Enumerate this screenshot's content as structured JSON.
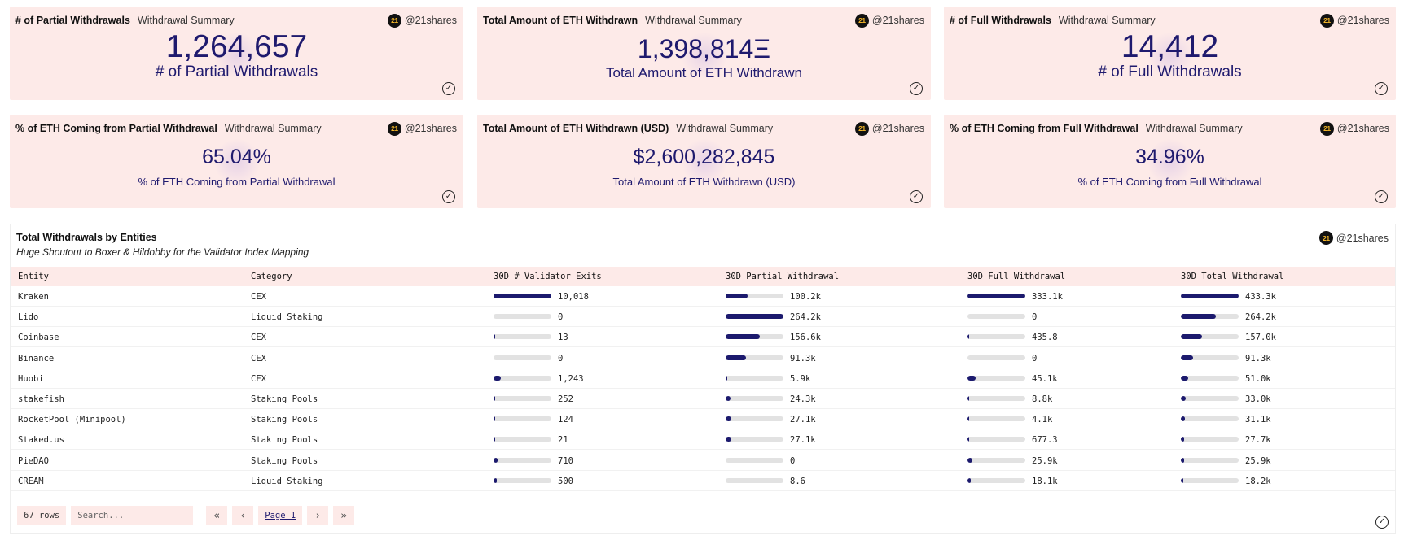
{
  "brand": {
    "logo": "21",
    "handle": "@21shares"
  },
  "cards": [
    {
      "title": "# of Partial Withdrawals",
      "subtitle": "Withdrawal Summary",
      "value": "1,264,657",
      "caption": "# of Partial Withdrawals"
    },
    {
      "title": "Total Amount of ETH Withdrawn",
      "subtitle": "Withdrawal Summary",
      "value": "1,398,814Ξ",
      "caption": "Total Amount of ETH Withdrawn"
    },
    {
      "title": "# of Full Withdrawals",
      "subtitle": "Withdrawal Summary",
      "value": "14,412",
      "caption": "# of Full Withdrawals"
    },
    {
      "title": "% of ETH Coming from Partial Withdrawal",
      "subtitle": "Withdrawal Summary",
      "value": "65.04%",
      "caption": "% of ETH Coming from Partial Withdrawal"
    },
    {
      "title": "Total Amount of ETH Withdrawn (USD)",
      "subtitle": "Withdrawal Summary",
      "value": "$2,600,282,845",
      "caption": "Total Amount of ETH Withdrawn (USD)"
    },
    {
      "title": "% of ETH Coming from Full Withdrawal",
      "subtitle": "Withdrawal Summary",
      "value": "34.96%",
      "caption": "% of ETH Coming from Full Withdrawal"
    }
  ],
  "table": {
    "title": "Total Withdrawals by Entities",
    "subtitle": "Huge Shoutout to Boxer & Hildobby for the Validator Index Mapping",
    "columns": [
      "Entity",
      "Category",
      "30D # Validator Exits",
      "30D Partial Withdrawal",
      "30D Full Withdrawal",
      "30D Total Withdrawal"
    ],
    "rows": [
      {
        "entity": "Kraken",
        "category": "CEX",
        "exits": "10,018",
        "exits_pct": 1.0,
        "partial": "100.2k",
        "partial_pct": 0.38,
        "full": "333.1k",
        "full_pct": 1.0,
        "total": "433.3k",
        "total_pct": 1.0
      },
      {
        "entity": "Lido",
        "category": "Liquid Staking",
        "exits": "0",
        "exits_pct": 0,
        "partial": "264.2k",
        "partial_pct": 1.0,
        "full": "0",
        "full_pct": 0,
        "total": "264.2k",
        "total_pct": 0.61
      },
      {
        "entity": "Coinbase",
        "category": "CEX",
        "exits": "13",
        "exits_pct": 0.01,
        "partial": "156.6k",
        "partial_pct": 0.59,
        "full": "435.8",
        "full_pct": 0.01,
        "total": "157.0k",
        "total_pct": 0.36
      },
      {
        "entity": "Binance",
        "category": "CEX",
        "exits": "0",
        "exits_pct": 0,
        "partial": "91.3k",
        "partial_pct": 0.35,
        "full": "0",
        "full_pct": 0,
        "total": "91.3k",
        "total_pct": 0.21
      },
      {
        "entity": "Huobi",
        "category": "CEX",
        "exits": "1,243",
        "exits_pct": 0.12,
        "partial": "5.9k",
        "partial_pct": 0.02,
        "full": "45.1k",
        "full_pct": 0.14,
        "total": "51.0k",
        "total_pct": 0.12
      },
      {
        "entity": "stakefish",
        "category": "Staking Pools",
        "exits": "252",
        "exits_pct": 0.03,
        "partial": "24.3k",
        "partial_pct": 0.09,
        "full": "8.8k",
        "full_pct": 0.03,
        "total": "33.0k",
        "total_pct": 0.08
      },
      {
        "entity": "RocketPool (Minipool)",
        "category": "Staking Pools",
        "exits": "124",
        "exits_pct": 0.01,
        "partial": "27.1k",
        "partial_pct": 0.1,
        "full": "4.1k",
        "full_pct": 0.01,
        "total": "31.1k",
        "total_pct": 0.07
      },
      {
        "entity": "Staked.us",
        "category": "Staking Pools",
        "exits": "21",
        "exits_pct": 0.01,
        "partial": "27.1k",
        "partial_pct": 0.1,
        "full": "677.3",
        "full_pct": 0.01,
        "total": "27.7k",
        "total_pct": 0.06
      },
      {
        "entity": "PieDAO",
        "category": "Staking Pools",
        "exits": "710",
        "exits_pct": 0.07,
        "partial": "0",
        "partial_pct": 0,
        "full": "25.9k",
        "full_pct": 0.08,
        "total": "25.9k",
        "total_pct": 0.06
      },
      {
        "entity": "CREAM",
        "category": "Liquid Staking",
        "exits": "500",
        "exits_pct": 0.05,
        "partial": "8.6",
        "partial_pct": 0,
        "full": "18.1k",
        "full_pct": 0.05,
        "total": "18.2k",
        "total_pct": 0.04
      }
    ]
  },
  "pager": {
    "rows_label": "67 rows",
    "search_placeholder": "Search...",
    "page_label": "Page 1"
  },
  "icons": {
    "check": "check-circle-icon",
    "first": "double-chevron-left-icon",
    "prev": "chevron-left-icon",
    "next": "chevron-right-icon",
    "last": "double-chevron-right-icon"
  },
  "colors": {
    "card_bg": "#fdeae8",
    "accent": "#1f1a6e",
    "bar_track": "#e2e2e2"
  }
}
